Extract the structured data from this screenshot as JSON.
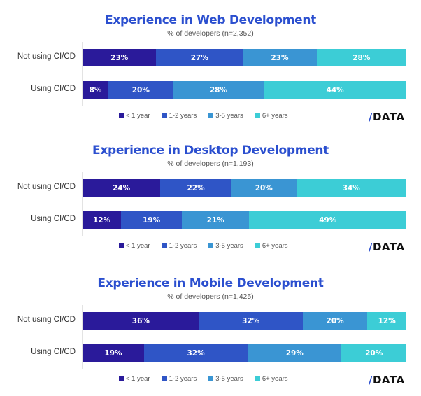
{
  "legend": [
    {
      "label": "< 1 year",
      "color": "#2a1a9a"
    },
    {
      "label": "1-2 years",
      "color": "#2f55c6"
    },
    {
      "label": "3-5 years",
      "color": "#3a95d3"
    },
    {
      "label": "6+ years",
      "color": "#3ccdd6"
    }
  ],
  "logo": {
    "slash": "/",
    "text": "DATA"
  },
  "chart_data": [
    {
      "type": "bar",
      "orientation": "horizontal-stacked",
      "title": "Experience in Web Development",
      "subtitle": "% of developers (n=2,352)",
      "categories": [
        "Not using CI/CD",
        "Using CI/CD"
      ],
      "xlim": [
        0,
        100
      ],
      "legend_position": "bottom",
      "series": [
        {
          "name": "< 1 year",
          "values": [
            23,
            8
          ]
        },
        {
          "name": "1-2 years",
          "values": [
            27,
            20
          ]
        },
        {
          "name": "3-5 years",
          "values": [
            23,
            28
          ]
        },
        {
          "name": "6+ years",
          "values": [
            28,
            44
          ]
        }
      ]
    },
    {
      "type": "bar",
      "orientation": "horizontal-stacked",
      "title": "Experience in Desktop Development",
      "subtitle": "% of developers (n=1,193)",
      "categories": [
        "Not using CI/CD",
        "Using CI/CD"
      ],
      "xlim": [
        0,
        100
      ],
      "legend_position": "bottom",
      "series": [
        {
          "name": "< 1 year",
          "values": [
            24,
            12
          ]
        },
        {
          "name": "1-2 years",
          "values": [
            22,
            19
          ]
        },
        {
          "name": "3-5 years",
          "values": [
            20,
            21
          ]
        },
        {
          "name": "6+ years",
          "values": [
            34,
            49
          ]
        }
      ]
    },
    {
      "type": "bar",
      "orientation": "horizontal-stacked",
      "title": "Experience in Mobile Development",
      "subtitle": "% of developers (n=1,425)",
      "categories": [
        "Not using CI/CD",
        "Using CI/CD"
      ],
      "xlim": [
        0,
        100
      ],
      "legend_position": "bottom",
      "series": [
        {
          "name": "< 1 year",
          "values": [
            36,
            19
          ]
        },
        {
          "name": "1-2 years",
          "values": [
            32,
            32
          ]
        },
        {
          "name": "3-5 years",
          "values": [
            20,
            29
          ]
        },
        {
          "name": "6+ years",
          "values": [
            12,
            20
          ]
        }
      ]
    }
  ]
}
